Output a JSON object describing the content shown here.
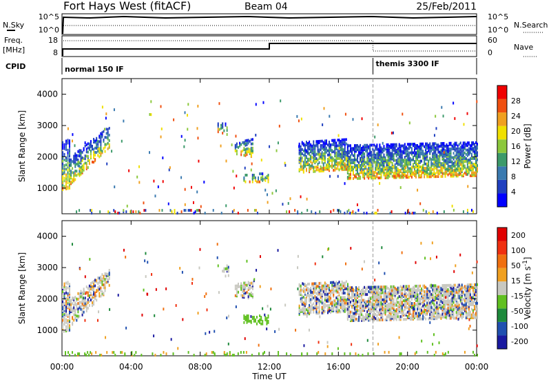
{
  "header": {
    "title": "Fort Hays West (fitACF)",
    "beam": "Beam 04",
    "date": "25/Feb/2011"
  },
  "top_panels": {
    "nsky_label": "N.Sky",
    "nsearch_label": "N.Search",
    "noise_left_ticks": [
      "10^5",
      "10^0"
    ],
    "noise_right_ticks": [
      "10^5",
      "10^0"
    ],
    "freq_label_line1": "Freq.",
    "freq_label_line2": "[MHz]",
    "freq_ticks": [
      "18",
      "8"
    ],
    "nave_label": "Nave",
    "nave_ticks": [
      "60",
      "0"
    ],
    "cpid_label": "CPID",
    "cpid_left": "normal 150 IF",
    "cpid_right": "themis 3300 IF",
    "cpid_switch_hour": 18.0,
    "freq_step_hour": 12.0
  },
  "chart_data": [
    {
      "type": "heatmap",
      "name": "power",
      "ylabel": "Slant Range [km]",
      "yticks": [
        "1000",
        "2000",
        "3000",
        "4000"
      ],
      "ylim": [
        180,
        4500
      ],
      "xlim": [
        0,
        24
      ],
      "colorbar_label": "Power [dB]",
      "colorbar_ticks": [
        "4",
        "8",
        "12",
        "16",
        "20",
        "24",
        "28"
      ],
      "colors": [
        "#0000ff",
        "#2040c0",
        "#3a7ab0",
        "#3c9a6a",
        "#8cc83c",
        "#f0e000",
        "#f0a020",
        "#f05010",
        "#f00000"
      ]
    },
    {
      "type": "heatmap",
      "name": "velocity",
      "ylabel": "Slant Range [km]",
      "yticks": [
        "1000",
        "2000",
        "3000",
        "4000"
      ],
      "ylim": [
        180,
        4500
      ],
      "xlim": [
        0,
        24
      ],
      "colorbar_label": "Velocity [m s",
      "colorbar_unit_sup": "-1",
      "colorbar_unit_close": "]",
      "colorbar_ticks": [
        "200",
        "100",
        "50",
        "15",
        "-15",
        "-50",
        "-100",
        "-200"
      ],
      "colors": [
        "#1a1aa0",
        "#2050b0",
        "#1e8a3c",
        "#60c020",
        "#c8c8c0",
        "#f0a020",
        "#f07010",
        "#f03010",
        "#e00000"
      ]
    }
  ],
  "x_axis": {
    "ticks": [
      "00:00",
      "04:00",
      "08:00",
      "12:00",
      "16:00",
      "20:00",
      "00:00"
    ],
    "label": "Time UT"
  }
}
